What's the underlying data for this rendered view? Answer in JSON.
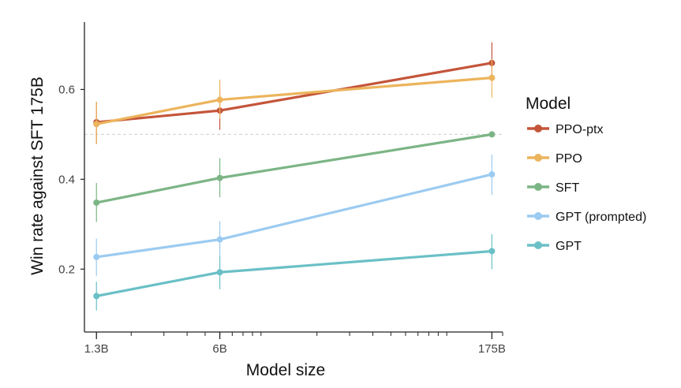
{
  "chart_data": {
    "type": "line",
    "xlabel": "Model size",
    "ylabel": "Win rate against SFT 175B",
    "x_scale": "log",
    "x": [
      "1.3B",
      "6B",
      "175B"
    ],
    "x_values_billions": [
      1.3,
      6,
      175
    ],
    "x_tick_labels": [
      "1.3B",
      "6B",
      "175B"
    ],
    "y_ticks": [
      "0.2",
      "0.4",
      "0.6"
    ],
    "ylim": [
      0.06,
      0.75
    ],
    "reference_line_y": 0.5,
    "legend_title": "Model",
    "legend_position": "right",
    "series": [
      {
        "name": "PPO-ptx",
        "color": "#c4553a",
        "values": [
          0.527,
          0.553,
          0.659
        ],
        "err_low": [
          0.48,
          0.51,
          0.62
        ],
        "err_high": [
          0.572,
          0.597,
          0.705
        ]
      },
      {
        "name": "PPO",
        "color": "#ecb45c",
        "values": [
          0.523,
          0.577,
          0.626
        ],
        "err_low": [
          0.478,
          0.535,
          0.582
        ],
        "err_high": [
          0.573,
          0.622,
          0.667
        ]
      },
      {
        "name": "SFT",
        "color": "#7cb585",
        "values": [
          0.348,
          0.403,
          0.5
        ],
        "err_low": [
          0.305,
          0.36,
          0.5
        ],
        "err_high": [
          0.392,
          0.447,
          0.5
        ]
      },
      {
        "name": "GPT (prompted)",
        "color": "#9ccbf1",
        "values": [
          0.227,
          0.266,
          0.411
        ],
        "err_low": [
          0.185,
          0.225,
          0.365
        ],
        "err_high": [
          0.268,
          0.307,
          0.455
        ]
      },
      {
        "name": "GPT",
        "color": "#6ac0c6",
        "values": [
          0.14,
          0.193,
          0.24
        ],
        "err_low": [
          0.108,
          0.155,
          0.2
        ],
        "err_high": [
          0.172,
          0.23,
          0.278
        ]
      }
    ]
  }
}
